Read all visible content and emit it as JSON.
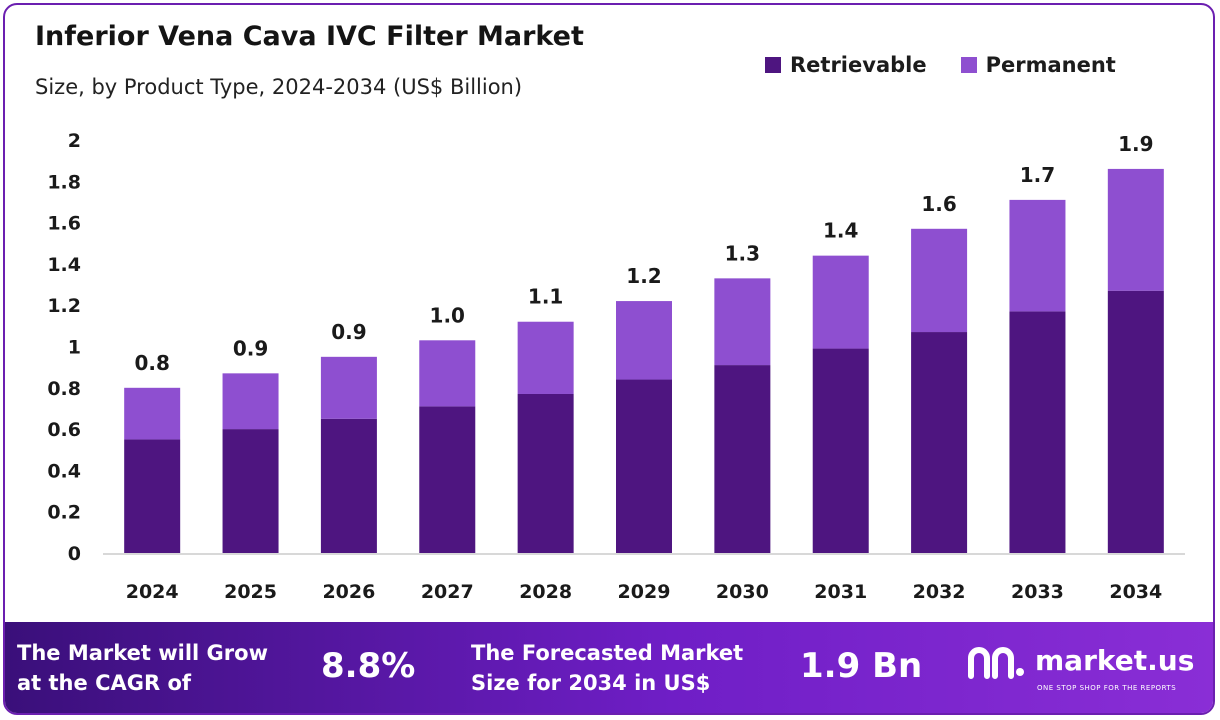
{
  "header": {
    "title": "Inferior Vena Cava IVC Filter Market",
    "subtitle": "Size, by Product Type, 2024-2034 (US$ Billion)"
  },
  "colors": {
    "retrievable": "#4e1580",
    "permanent": "#8e4fd0",
    "axis": "#cccccc",
    "text": "#1a1a1a"
  },
  "chart_data": {
    "type": "bar",
    "stacked": true,
    "categories": [
      "2024",
      "2025",
      "2026",
      "2027",
      "2028",
      "2029",
      "2030",
      "2031",
      "2032",
      "2033",
      "2034"
    ],
    "series": [
      {
        "name": "Retrievable",
        "values": [
          0.55,
          0.6,
          0.65,
          0.71,
          0.77,
          0.84,
          0.91,
          0.99,
          1.07,
          1.17,
          1.27
        ]
      },
      {
        "name": "Permanent",
        "values": [
          0.25,
          0.27,
          0.3,
          0.32,
          0.35,
          0.38,
          0.42,
          0.45,
          0.5,
          0.54,
          0.59
        ]
      }
    ],
    "totals_labels": [
      "0.8",
      "0.9",
      "0.9",
      "1.0",
      "1.1",
      "1.2",
      "1.3",
      "1.4",
      "1.6",
      "1.7",
      "1.9"
    ],
    "ylim": [
      0,
      2
    ],
    "yticks": [
      "0",
      "0.2",
      "0.4",
      "0.6",
      "0.8",
      "1",
      "1.2",
      "1.4",
      "1.6",
      "1.8",
      "2"
    ],
    "xlabel": "",
    "ylabel": "",
    "grid": false,
    "legend_position": "top-right"
  },
  "footer": {
    "cagr_text": "The Market will Grow\nat the CAGR of",
    "cagr_value": "8.8%",
    "forecast_text": "The Forecasted Market\nSize for 2034 in US$",
    "forecast_value": "1.9 Bn",
    "brand_name": "market.us",
    "brand_tagline": "ONE STOP SHOP FOR THE REPORTS"
  }
}
